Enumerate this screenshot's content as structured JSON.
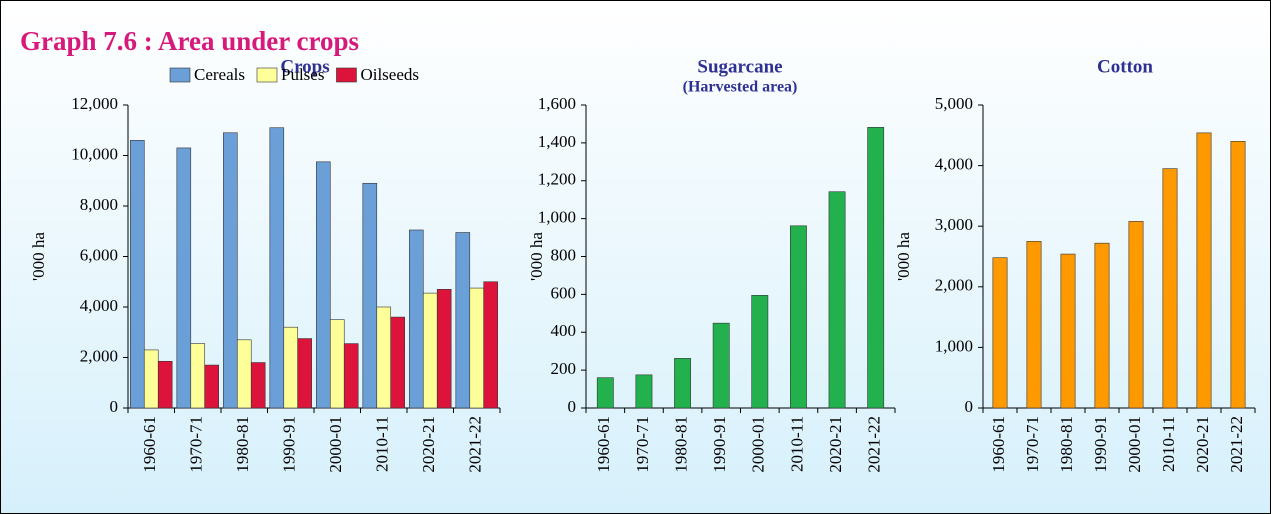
{
  "title": "Graph 7.6 : Area under crops",
  "chart_data": [
    {
      "type": "bar",
      "title": "Crops",
      "y_label": "'000 ha",
      "legend": "top",
      "categories": [
        "1960-61",
        "1970-71",
        "1980-81",
        "1990-91",
        "2000-01",
        "2010-11",
        "2020-21",
        "2021-22"
      ],
      "series": [
        {
          "name": "Cereals",
          "color": "#6a9fd8",
          "values": [
            10600,
            10300,
            10900,
            11100,
            9750,
            8900,
            7050,
            6950
          ]
        },
        {
          "name": "Pulses",
          "color": "#ffff99",
          "values": [
            2300,
            2550,
            2700,
            3200,
            3500,
            4000,
            4550,
            4750
          ]
        },
        {
          "name": "Oilseeds",
          "color": "#dc143c",
          "values": [
            1850,
            1700,
            1800,
            2750,
            2550,
            3600,
            4700,
            5000
          ]
        }
      ],
      "ylim": [
        0,
        12000
      ],
      "yticks": [
        0,
        {
          "value": 2000,
          "label": "2,000"
        },
        {
          "value": 4000,
          "label": "4,000"
        },
        {
          "value": 6000,
          "label": "6,000"
        },
        {
          "value": 8000,
          "label": "8,000"
        },
        {
          "value": 10000,
          "label": "10,000"
        },
        {
          "value": 12000,
          "label": "12,000"
        }
      ]
    },
    {
      "type": "bar",
      "title": "Sugarcane",
      "subtitle": "(Harvested area)",
      "y_label": "'000 ha",
      "categories": [
        "1960-61",
        "1970-71",
        "1980-81",
        "1990-91",
        "2000-01",
        "2010-11",
        "2020-21",
        "2021-22"
      ],
      "values": [
        160,
        175,
        262,
        448,
        595,
        962,
        1142,
        1482
      ],
      "color": "#22b14c",
      "ylim": [
        0,
        1600
      ],
      "yticks": [
        0,
        200,
        400,
        600,
        800,
        {
          "value": 1000,
          "label": "1,000"
        },
        {
          "value": 1200,
          "label": "1,200"
        },
        {
          "value": 1400,
          "label": "1,400"
        },
        {
          "value": 1600,
          "label": "1,600"
        }
      ]
    },
    {
      "type": "bar",
      "title": "Cotton",
      "y_label": "'000 ha",
      "categories": [
        "1960-61",
        "1970-71",
        "1980-81",
        "1990-91",
        "2000-01",
        "2010-11",
        "2020-21",
        "2021-22"
      ],
      "values": [
        2480,
        2750,
        2540,
        2720,
        3080,
        3950,
        4540,
        4400
      ],
      "color": "#ff9900",
      "ylim": [
        0,
        5000
      ],
      "yticks": [
        0,
        {
          "value": 1000,
          "label": "1,000"
        },
        {
          "value": 2000,
          "label": "2,000"
        },
        {
          "value": 3000,
          "label": "3,000"
        },
        {
          "value": 4000,
          "label": "4,000"
        },
        {
          "value": 5000,
          "label": "5,000"
        }
      ]
    }
  ]
}
